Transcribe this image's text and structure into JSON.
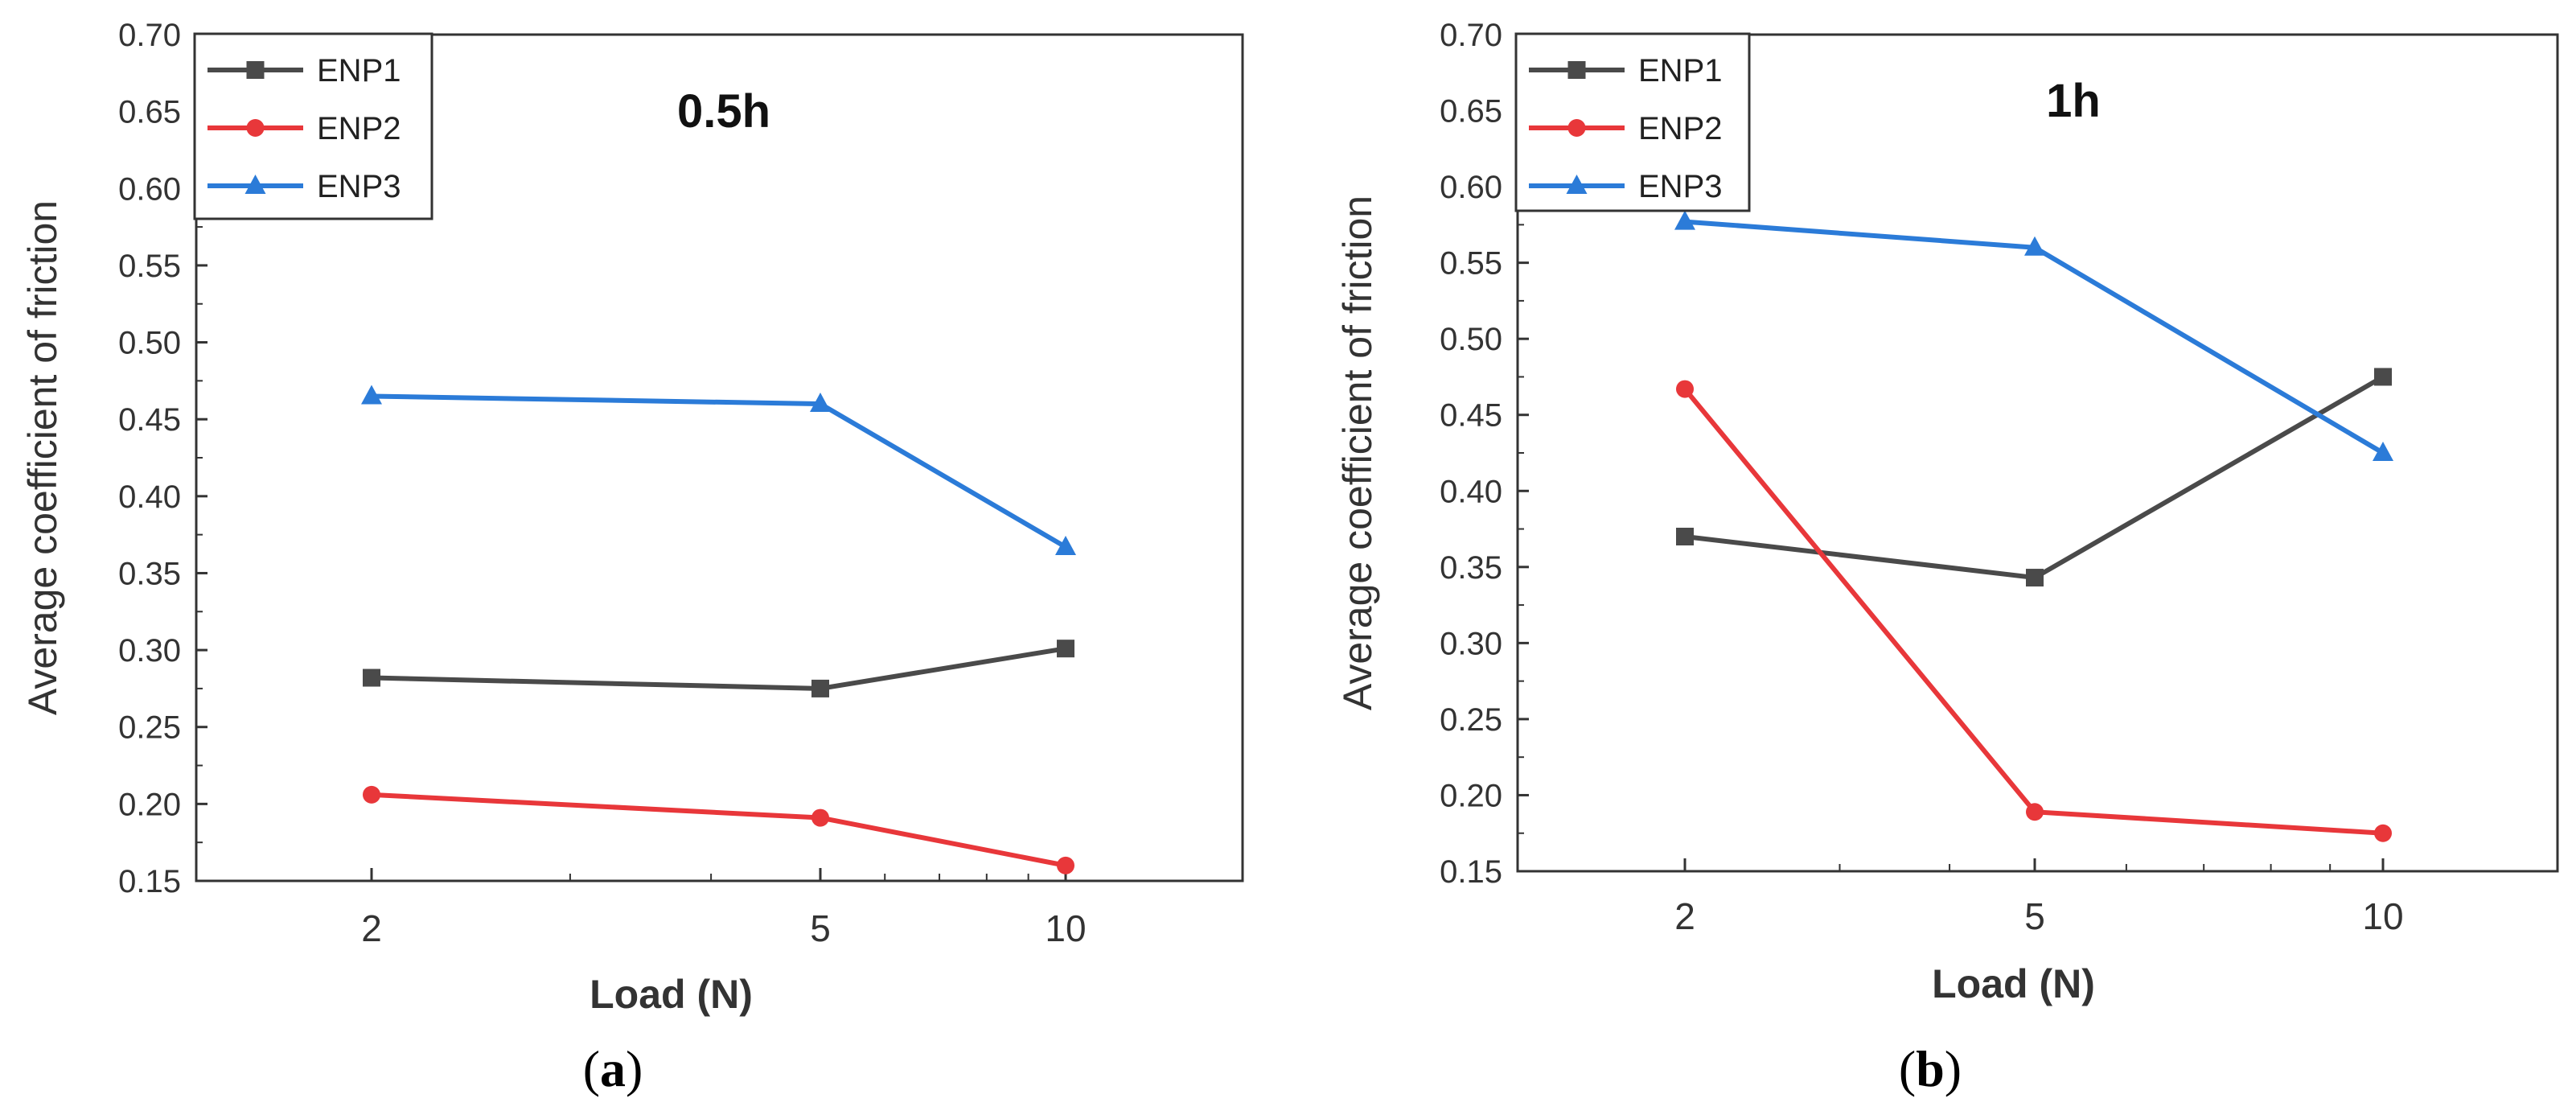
{
  "chart_data": [
    {
      "type": "line",
      "title": "0.5h",
      "xlabel": "Load (N)",
      "ylabel": "Average coefficient of friction",
      "categories": [
        "2",
        "5",
        "10"
      ],
      "x": [
        2,
        5,
        10
      ],
      "ylim": [
        0.15,
        0.7
      ],
      "yticks": [
        "0.15",
        "0.20",
        "0.25",
        "0.30",
        "0.35",
        "0.40",
        "0.45",
        "0.50",
        "0.55",
        "0.60",
        "0.65",
        "0.70"
      ],
      "legend_position": "top-left",
      "caption": {
        "open": "(",
        "letter": "a",
        "close": ")"
      },
      "series": [
        {
          "name": "ENP1",
          "values": [
            0.282,
            0.275,
            0.301
          ],
          "color": "#4a4a4a",
          "marker": "square"
        },
        {
          "name": "ENP2",
          "values": [
            0.206,
            0.191,
            0.16
          ],
          "color": "#e8373a",
          "marker": "circle"
        },
        {
          "name": "ENP3",
          "values": [
            0.465,
            0.46,
            0.367
          ],
          "color": "#2b7bd8",
          "marker": "triangle"
        }
      ]
    },
    {
      "type": "line",
      "title": "1h",
      "xlabel": "Load (N)",
      "ylabel": "Average coefficient of friction",
      "categories": [
        "2",
        "5",
        "10"
      ],
      "x": [
        2,
        5,
        10
      ],
      "ylim": [
        0.15,
        0.7
      ],
      "yticks": [
        "0.15",
        "0.20",
        "0.25",
        "0.30",
        "0.35",
        "0.40",
        "0.45",
        "0.50",
        "0.55",
        "0.60",
        "0.65",
        "0.70"
      ],
      "legend_position": "top-left",
      "caption": {
        "open": "(",
        "letter": "b",
        "close": ")"
      },
      "series": [
        {
          "name": "ENP1",
          "values": [
            0.37,
            0.343,
            0.475
          ],
          "color": "#4a4a4a",
          "marker": "square"
        },
        {
          "name": "ENP2",
          "values": [
            0.467,
            0.189,
            0.175
          ],
          "color": "#e8373a",
          "marker": "circle"
        },
        {
          "name": "ENP3",
          "values": [
            0.577,
            0.56,
            0.425
          ],
          "color": "#2b7bd8",
          "marker": "triangle"
        }
      ]
    }
  ]
}
